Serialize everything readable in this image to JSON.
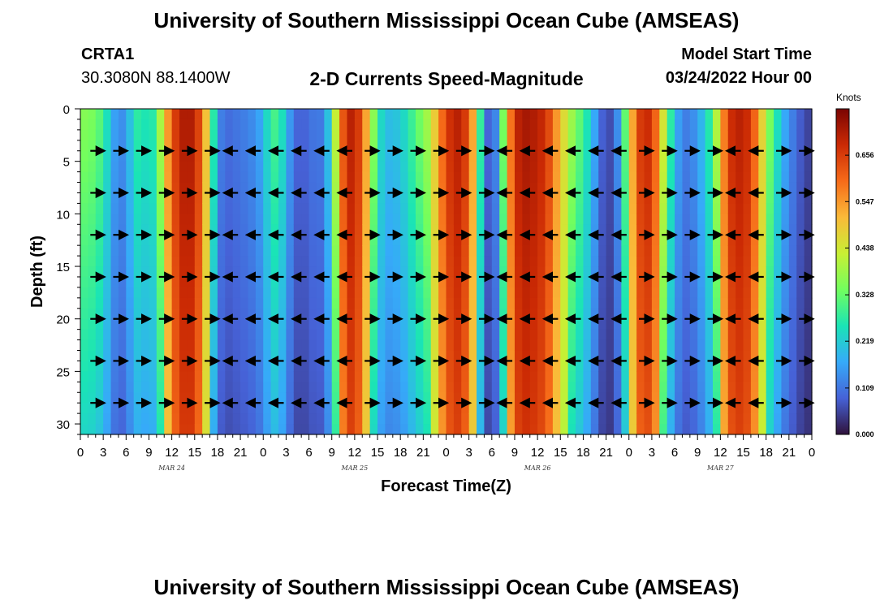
{
  "header": {
    "title": "University of Southern Mississippi Ocean Cube (AMSEAS)",
    "station": "CRTA1",
    "coordinates": "30.3080N  88.1400W",
    "subtitle": "2-D Currents Speed-Magnitude",
    "model_start_label": "Model Start Time",
    "model_start_value": "03/24/2022 Hour 00"
  },
  "footer": {
    "title": "University of Southern Mississippi Ocean Cube (AMSEAS)"
  },
  "colors": {
    "colormap": [
      "#30123b",
      "#4662d7",
      "#36aaf9",
      "#1ae4b6",
      "#72fe5e",
      "#c8ef34",
      "#faba39",
      "#f66b19",
      "#cb2a04",
      "#7a0403"
    ]
  },
  "chart_data": {
    "type": "heatmap",
    "title": "2-D Currents Speed-Magnitude",
    "xlabel": "Forecast Time(Z)",
    "ylabel": "Depth (ft)",
    "xlim": [
      0,
      96
    ],
    "ylim": [
      31,
      0
    ],
    "x_tick_labels": [
      "0",
      "3",
      "6",
      "9",
      "12",
      "15",
      "18",
      "21",
      "0",
      "3",
      "6",
      "9",
      "12",
      "15",
      "18",
      "21",
      "0",
      "3",
      "6",
      "9",
      "12",
      "15",
      "18",
      "21",
      "0",
      "3",
      "6",
      "9",
      "12",
      "15",
      "18",
      "21",
      "0"
    ],
    "y_ticks": [
      0,
      5,
      10,
      15,
      20,
      25,
      30
    ],
    "y_tick_labels": [
      "0",
      "5",
      "10",
      "15",
      "20",
      "25",
      "30"
    ],
    "day_labels": [
      {
        "label": "MAR 24",
        "hour": 12
      },
      {
        "label": "MAR 25",
        "hour": 36
      },
      {
        "label": "MAR 26",
        "hour": 60
      },
      {
        "label": "MAR 27",
        "hour": 84
      }
    ],
    "colorbar": {
      "unit": "Knots",
      "min": 0.0,
      "max": 0.765,
      "ticks": [
        0.0,
        0.109,
        0.219,
        0.328,
        0.438,
        0.547,
        0.656
      ],
      "tick_labels": [
        "0.000",
        "0.109",
        "0.219",
        "0.328",
        "0.438",
        "0.547",
        "0.656"
      ]
    },
    "speed_profile": {
      "hours": [
        0,
        1,
        2,
        3,
        4,
        5,
        6,
        7,
        8,
        9,
        10,
        11,
        12,
        13,
        14,
        15,
        16,
        17,
        18,
        19,
        20,
        21,
        22,
        23,
        24,
        25,
        26,
        27,
        28,
        29,
        30,
        31,
        32,
        33,
        34,
        35,
        36,
        37,
        38,
        39,
        40,
        41,
        42,
        43,
        44,
        45,
        46,
        47,
        48,
        49,
        50,
        51,
        52,
        53,
        54,
        55,
        56,
        57,
        58,
        59,
        60,
        61,
        62,
        63,
        64,
        65,
        66,
        67,
        68,
        69,
        70,
        71,
        72,
        73,
        74,
        75,
        76,
        77,
        78,
        79,
        80,
        81,
        82,
        83,
        84,
        85,
        86,
        87,
        88,
        89,
        90,
        91,
        92,
        93,
        94,
        95,
        96
      ],
      "surface_knots": [
        0.36,
        0.36,
        0.34,
        0.3,
        0.2,
        0.12,
        0.16,
        0.25,
        0.3,
        0.22,
        0.32,
        0.48,
        0.62,
        0.7,
        0.72,
        0.7,
        0.6,
        0.4,
        0.14,
        0.1,
        0.1,
        0.12,
        0.12,
        0.15,
        0.18,
        0.3,
        0.3,
        0.2,
        0.1,
        0.08,
        0.1,
        0.12,
        0.11,
        0.3,
        0.55,
        0.7,
        0.7,
        0.62,
        0.45,
        0.28,
        0.2,
        0.2,
        0.22,
        0.26,
        0.32,
        0.36,
        0.42,
        0.55,
        0.65,
        0.7,
        0.7,
        0.62,
        0.45,
        0.12,
        0.06,
        0.2,
        0.5,
        0.68,
        0.72,
        0.72,
        0.7,
        0.68,
        0.6,
        0.5,
        0.42,
        0.35,
        0.3,
        0.22,
        0.12,
        0.05,
        0.08,
        0.2,
        0.45,
        0.62,
        0.7,
        0.66,
        0.55,
        0.35,
        0.2,
        0.12,
        0.12,
        0.16,
        0.22,
        0.32,
        0.5,
        0.66,
        0.7,
        0.7,
        0.66,
        0.55,
        0.4,
        0.3,
        0.2,
        0.14,
        0.1,
        0.06,
        0.05
      ]
    },
    "vector_depths_ft": [
      4,
      8,
      12,
      16,
      20,
      24,
      28
    ],
    "vector_hours": [
      2,
      5,
      8,
      11,
      14,
      17,
      20,
      23,
      26,
      29,
      32,
      35,
      38,
      41,
      44,
      47,
      50,
      53,
      56,
      59,
      62,
      65,
      68,
      71,
      74,
      77,
      80,
      83,
      86,
      89,
      92,
      95
    ],
    "vector_directions": [
      "E",
      "E",
      "E",
      "E",
      "E",
      "E",
      "W",
      "W",
      "W",
      "W",
      "W",
      "W",
      "E",
      "E",
      "E",
      "E",
      "E",
      "E",
      "W",
      "W",
      "W",
      "W",
      "W",
      "W",
      "E",
      "E",
      "E",
      "E",
      "W",
      "W",
      "E",
      "E"
    ]
  }
}
